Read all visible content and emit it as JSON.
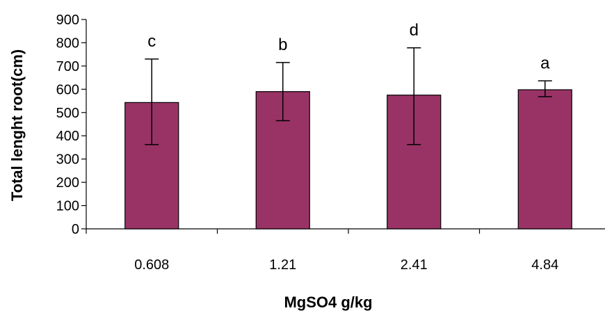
{
  "chart_data": {
    "type": "bar",
    "title": "",
    "xlabel": "MgSO4 g/kg",
    "ylabel": "Total lenght root(cm)",
    "categories": [
      "0.608",
      "1.21",
      "2.41",
      "4.84"
    ],
    "values": [
      543,
      590,
      575,
      598
    ],
    "error_upper": [
      730,
      715,
      778,
      636
    ],
    "error_lower": [
      362,
      465,
      362,
      568
    ],
    "significance_labels": [
      "c",
      "b",
      "d",
      "a"
    ],
    "ylim": [
      0,
      900
    ],
    "yticks": [
      "0",
      "100",
      "200",
      "300",
      "400",
      "500",
      "600",
      "700",
      "800",
      "900"
    ],
    "grid": false,
    "legend": "none",
    "bar_color": "#993366"
  }
}
